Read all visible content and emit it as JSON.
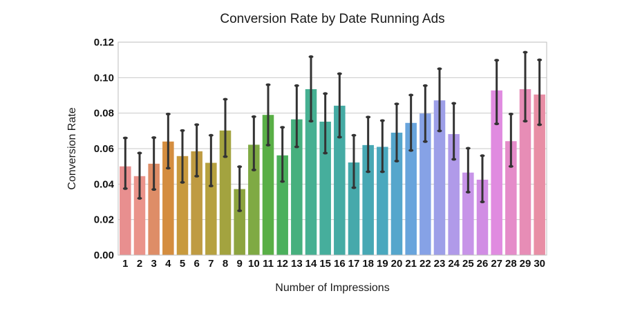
{
  "chart_data": {
    "type": "bar",
    "title": "Conversion Rate by Date Running Ads",
    "xlabel": "Number of Impressions",
    "ylabel": "Conversion Rate",
    "ylim": [
      0,
      0.12
    ],
    "yticks": [
      0.0,
      0.02,
      0.04,
      0.06,
      0.08,
      0.1,
      0.12
    ],
    "ytick_labels": [
      "0.00",
      "0.02",
      "0.04",
      "0.06",
      "0.08",
      "0.10",
      "0.12"
    ],
    "grid": true,
    "categories": [
      "1",
      "2",
      "3",
      "4",
      "5",
      "6",
      "7",
      "8",
      "9",
      "10",
      "11",
      "12",
      "13",
      "14",
      "15",
      "16",
      "17",
      "18",
      "19",
      "20",
      "21",
      "22",
      "23",
      "24",
      "25",
      "26",
      "27",
      "28",
      "29",
      "30"
    ],
    "values": [
      0.05,
      0.0445,
      0.0515,
      0.064,
      0.0558,
      0.0585,
      0.052,
      0.0702,
      0.0372,
      0.0622,
      0.079,
      0.0562,
      0.0765,
      0.0935,
      0.0752,
      0.0842,
      0.0522,
      0.062,
      0.061,
      0.069,
      0.0745,
      0.0798,
      0.0872,
      0.0682,
      0.0465,
      0.0425,
      0.0928,
      0.0642,
      0.0935,
      0.0905
    ],
    "error_low": [
      0.0375,
      0.032,
      0.037,
      0.049,
      0.041,
      0.0445,
      0.039,
      0.0555,
      0.025,
      0.048,
      0.062,
      0.0415,
      0.061,
      0.0755,
      0.0575,
      0.0665,
      0.038,
      0.047,
      0.047,
      0.053,
      0.059,
      0.064,
      0.07,
      0.054,
      0.0355,
      0.03,
      0.074,
      0.05,
      0.0755,
      0.0735
    ],
    "error_high": [
      0.066,
      0.0575,
      0.0662,
      0.0795,
      0.0702,
      0.0735,
      0.0675,
      0.0878,
      0.0498,
      0.078,
      0.096,
      0.072,
      0.0955,
      0.1118,
      0.091,
      0.1022,
      0.0675,
      0.0778,
      0.0758,
      0.0852,
      0.0902,
      0.0955,
      0.105,
      0.0855,
      0.0602,
      0.056,
      0.1098,
      0.0795,
      0.1143,
      0.11
    ],
    "colors": [
      "#e88f8f",
      "#ea938a",
      "#de8d67",
      "#d48d3f",
      "#c89a3d",
      "#bf9b42",
      "#b6a13f",
      "#a3a33f",
      "#8da43f",
      "#7faa44",
      "#59af46",
      "#4bb05c",
      "#46b07e",
      "#46b092",
      "#46ae9c",
      "#45aba4",
      "#46a9ab",
      "#47a8b4",
      "#4aa8be",
      "#55a6cc",
      "#68a4dc",
      "#86a2e6",
      "#9d9fe8",
      "#b09ae9",
      "#c794e8",
      "#d18de4",
      "#e08be0",
      "#e58cc9",
      "#e78db6",
      "#e88ea5"
    ]
  }
}
